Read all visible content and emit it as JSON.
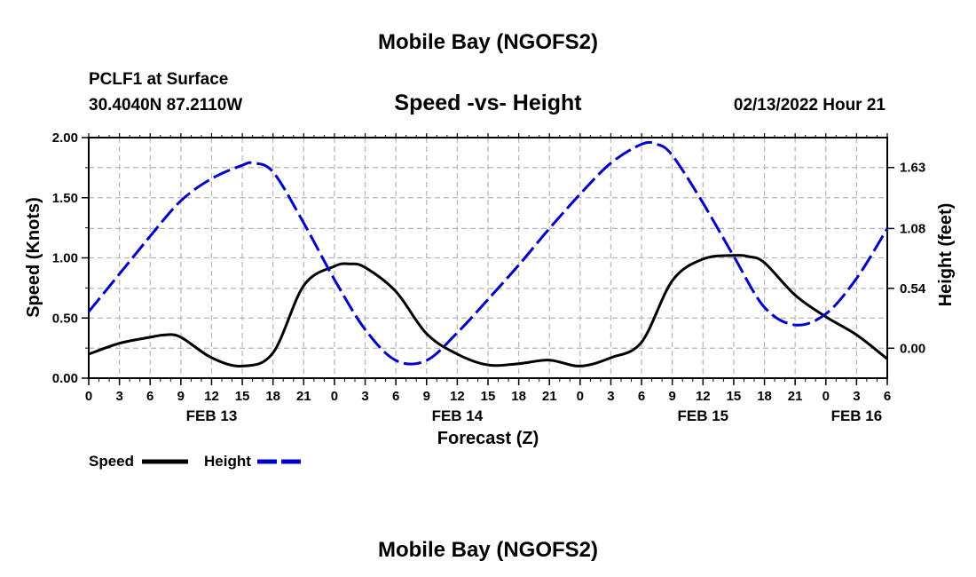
{
  "page": {
    "title": "Mobile Bay (NGOFS2)",
    "footer_title": "Mobile Bay (NGOFS2)"
  },
  "header": {
    "station": "PCLF1 at Surface",
    "coords": "30.4040N  87.2110W",
    "plot_title": "Speed -vs- Height",
    "timestamp": "02/13/2022 Hour 21"
  },
  "chart_data": {
    "type": "line",
    "title": "Speed -vs- Height",
    "xlabel": "Forecast (Z)",
    "ylabel": "Speed (Knots)",
    "y2label": "Height (feet)",
    "grid": true,
    "legend_placement": "bottom-left",
    "xlim": [
      0,
      78
    ],
    "ylim": [
      0,
      2.0
    ],
    "y2lim": [
      -0.27,
      1.9
    ],
    "x_ticks": [
      0,
      3,
      6,
      9,
      12,
      15,
      18,
      21,
      24,
      27,
      30,
      33,
      36,
      39,
      42,
      45,
      48,
      51,
      54,
      57,
      60,
      63,
      66,
      69,
      72,
      75,
      78
    ],
    "x_tick_labels": [
      "0",
      "3",
      "6",
      "9",
      "12",
      "15",
      "18",
      "21",
      "0",
      "3",
      "6",
      "9",
      "12",
      "15",
      "18",
      "21",
      "0",
      "3",
      "6",
      "9",
      "12",
      "15",
      "18",
      "21",
      "0",
      "3",
      "6"
    ],
    "date_labels": [
      {
        "x": 12,
        "label": "FEB 13"
      },
      {
        "x": 36,
        "label": "FEB 14"
      },
      {
        "x": 60,
        "label": "FEB 15"
      },
      {
        "x": 75,
        "label": "FEB 16"
      }
    ],
    "y_ticks": [
      0.0,
      0.5,
      1.0,
      1.5,
      2.0
    ],
    "y_tick_labels": [
      "0.00",
      "0.50",
      "1.00",
      "1.50",
      "2.00"
    ],
    "y2_ticks": [
      0.0,
      0.54,
      1.08,
      1.63
    ],
    "y2_tick_labels": [
      "0.00",
      "0.54",
      "1.08",
      "1.63"
    ],
    "series": [
      {
        "name": "Speed",
        "axis": "left",
        "color": "#000000",
        "style": "solid",
        "x": [
          0,
          3,
          6,
          7.5,
          9,
          12,
          15,
          18,
          21,
          24,
          25.5,
          27,
          30,
          33,
          36,
          39,
          42,
          45,
          48,
          51,
          54,
          57,
          60,
          63,
          64.5,
          66,
          69,
          72,
          75,
          78
        ],
        "y": [
          0.2,
          0.29,
          0.34,
          0.36,
          0.34,
          0.17,
          0.1,
          0.21,
          0.77,
          0.93,
          0.95,
          0.92,
          0.72,
          0.37,
          0.2,
          0.11,
          0.12,
          0.15,
          0.1,
          0.17,
          0.3,
          0.81,
          0.99,
          1.02,
          1.01,
          0.96,
          0.69,
          0.51,
          0.36,
          0.16
        ]
      },
      {
        "name": "Height",
        "axis": "right",
        "color": "#0000cc",
        "style": "dashed",
        "x": [
          0,
          3,
          6,
          9,
          12,
          15,
          16,
          18,
          21,
          24,
          27,
          30,
          33,
          36,
          39,
          42,
          45,
          48,
          51,
          54,
          55.5,
          57,
          60,
          63,
          66,
          69,
          72,
          75,
          78
        ],
        "y": [
          0.33,
          0.67,
          1.01,
          1.33,
          1.53,
          1.65,
          1.67,
          1.59,
          1.13,
          0.62,
          0.17,
          -0.11,
          -0.11,
          0.14,
          0.44,
          0.75,
          1.08,
          1.39,
          1.67,
          1.84,
          1.84,
          1.74,
          1.31,
          0.83,
          0.37,
          0.21,
          0.31,
          0.63,
          1.08
        ]
      }
    ]
  },
  "legend": {
    "speed_label": "Speed",
    "height_label": "Height"
  }
}
